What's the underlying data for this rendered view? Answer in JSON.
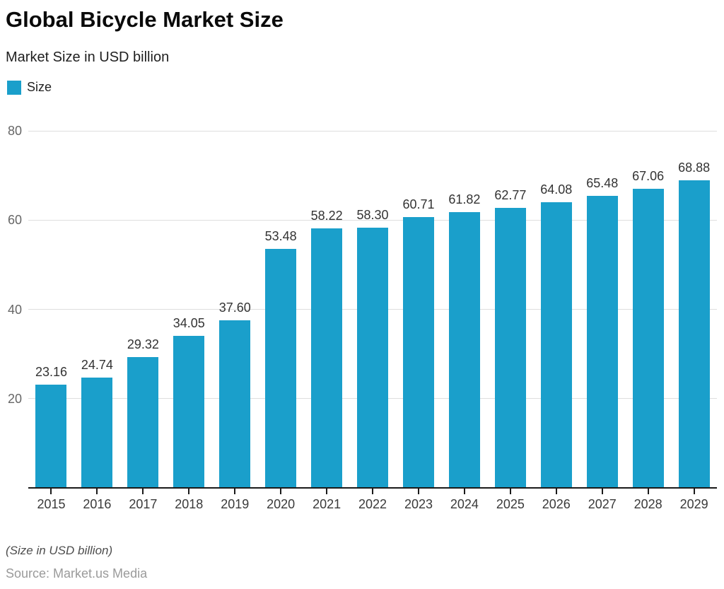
{
  "header": {
    "title": "Global Bicycle Market Size",
    "subtitle": "Market Size in USD billion"
  },
  "legend": {
    "label": "Size",
    "swatch_color": "#1A9FCB"
  },
  "chart_data": {
    "type": "bar",
    "title": "Global Bicycle Market Size",
    "subtitle": "Market Size in USD billion",
    "series_name": "Size",
    "categories": [
      "2015",
      "2016",
      "2017",
      "2018",
      "2019",
      "2020",
      "2021",
      "2022",
      "2023",
      "2024",
      "2025",
      "2026",
      "2027",
      "2028",
      "2029"
    ],
    "values": [
      23.16,
      24.74,
      29.32,
      34.05,
      37.6,
      53.48,
      58.22,
      58.3,
      60.71,
      61.82,
      62.77,
      64.08,
      65.48,
      67.06,
      68.88
    ],
    "value_labels": [
      "23.16",
      "24.74",
      "29.32",
      "34.05",
      "37.60",
      "53.48",
      "58.22",
      "58.30",
      "60.71",
      "61.82",
      "62.77",
      "64.08",
      "65.48",
      "67.06",
      "68.88"
    ],
    "xlabel": "",
    "ylabel": "",
    "ylim": [
      0,
      80
    ],
    "yticks": [
      20,
      40,
      60,
      80
    ],
    "grid": true,
    "legend_position": "top-left",
    "bar_color": "#1A9FCB"
  },
  "footer": {
    "note": "(Size in USD billion)",
    "source": "Source: Market.us Media"
  },
  "colors": {
    "bar": "#1A9FCB",
    "grid": "#dedede",
    "axis": "#1a1a1a",
    "background": "#ffffff"
  }
}
